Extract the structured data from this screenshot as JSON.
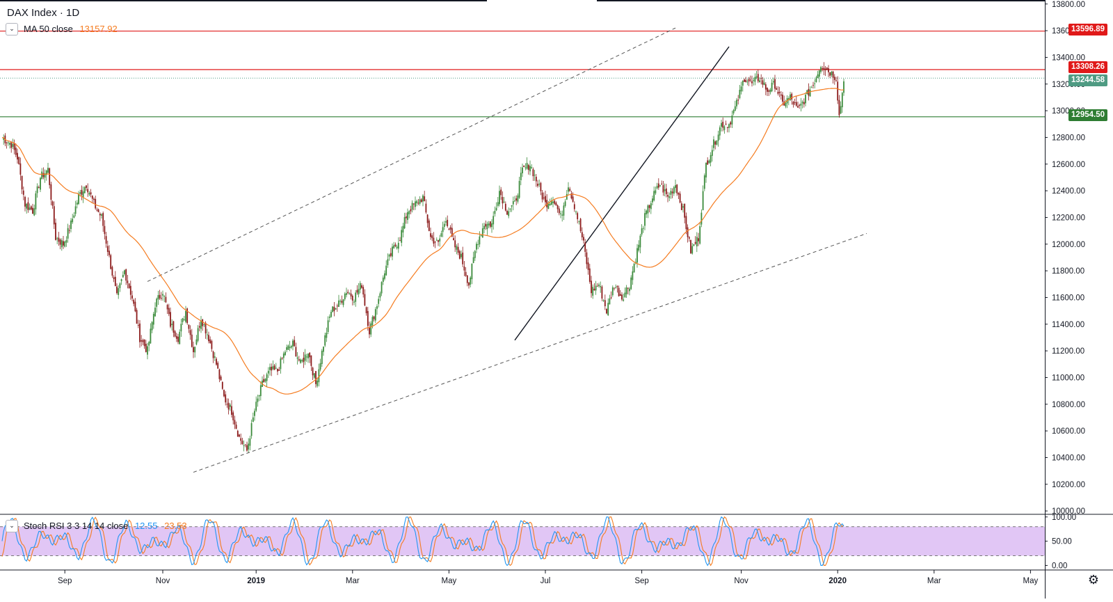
{
  "header": {
    "symbol_title": "DAX Index · 1D",
    "ma_label": "MA 50 close",
    "ma_value": "13157.92",
    "ma_color": "#f57c20"
  },
  "stoch": {
    "label": "Stoch RSI 3 3 14 14 close",
    "k_value": "12.55",
    "d_value": "23.53",
    "k_color": "#2196f3",
    "d_color": "#f57c20",
    "band_color": "#e1c6f5"
  },
  "price_tags": {
    "resistance_top": "13596.89",
    "resistance_mid": "13308.26",
    "last_price": "13244.58",
    "support": "12954.50"
  },
  "colors": {
    "up": "#26a69a",
    "up_fill": "#3a8a3a",
    "down": "#8b1a1a",
    "resistance": "#e01919",
    "support": "#2e7d32",
    "last": "#4f9b83"
  },
  "settings_icon": "gear-icon",
  "collapse_icon": "chevron-down-icon",
  "chart_data": {
    "type": "candlestick",
    "title": "DAX Index · 1D",
    "x_ticks": [
      "Sep",
      "Nov",
      "2019",
      "Mar",
      "May",
      "Jul",
      "Sep",
      "Nov",
      "2020",
      "Mar",
      "May"
    ],
    "y_ticks": [
      "13800.00",
      "13600.00",
      "13400.00",
      "13200.00",
      "13000.00",
      "12800.00",
      "12600.00",
      "12400.00",
      "12200.00",
      "12000.00",
      "11800.00",
      "11600.00",
      "11400.00",
      "11200.00",
      "11000.00",
      "10800.00",
      "10600.00",
      "10400.00",
      "10200.00",
      "10000.00"
    ],
    "ylim": [
      9980,
      13830
    ],
    "stoch_ticks": [
      "100.00",
      "50.00",
      "0.00"
    ],
    "stoch_ylim": [
      -8,
      104
    ],
    "stoch_bands": [
      20,
      80
    ],
    "horizontal_levels": [
      13596.89,
      13308.26,
      13244.58,
      12954.5
    ],
    "anchors": [
      [
        0,
        12800
      ],
      [
        6,
        12750
      ],
      [
        10,
        12650
      ],
      [
        15,
        12300
      ],
      [
        20,
        12250
      ],
      [
        25,
        12500
      ],
      [
        30,
        12560
      ],
      [
        35,
        12050
      ],
      [
        40,
        12000
      ],
      [
        45,
        12150
      ],
      [
        50,
        12360
      ],
      [
        55,
        12450
      ],
      [
        60,
        12300
      ],
      [
        65,
        12200
      ],
      [
        70,
        11900
      ],
      [
        75,
        11600
      ],
      [
        80,
        11800
      ],
      [
        85,
        11600
      ],
      [
        90,
        11300
      ],
      [
        95,
        11200
      ],
      [
        100,
        11550
      ],
      [
        105,
        11650
      ],
      [
        110,
        11400
      ],
      [
        115,
        11300
      ],
      [
        120,
        11500
      ],
      [
        125,
        11200
      ],
      [
        130,
        11450
      ],
      [
        135,
        11300
      ],
      [
        140,
        11100
      ],
      [
        145,
        10850
      ],
      [
        150,
        10750
      ],
      [
        155,
        10550
      ],
      [
        160,
        10450
      ],
      [
        165,
        10750
      ],
      [
        170,
        10950
      ],
      [
        175,
        11050
      ],
      [
        180,
        11050
      ],
      [
        185,
        11200
      ],
      [
        190,
        11250
      ],
      [
        195,
        11100
      ],
      [
        200,
        11200
      ],
      [
        205,
        10950
      ],
      [
        210,
        11250
      ],
      [
        215,
        11500
      ],
      [
        220,
        11550
      ],
      [
        225,
        11650
      ],
      [
        230,
        11600
      ],
      [
        235,
        11700
      ],
      [
        240,
        11350
      ],
      [
        245,
        11550
      ],
      [
        250,
        11800
      ],
      [
        255,
        11950
      ],
      [
        260,
        12050
      ],
      [
        265,
        12250
      ],
      [
        270,
        12300
      ],
      [
        275,
        12350
      ],
      [
        280,
        12050
      ],
      [
        285,
        12000
      ],
      [
        290,
        12200
      ],
      [
        295,
        12000
      ],
      [
        300,
        11900
      ],
      [
        305,
        11700
      ],
      [
        310,
        12000
      ],
      [
        315,
        12150
      ],
      [
        320,
        12150
      ],
      [
        325,
        12400
      ],
      [
        330,
        12250
      ],
      [
        335,
        12300
      ],
      [
        340,
        12550
      ],
      [
        345,
        12600
      ],
      [
        350,
        12450
      ],
      [
        355,
        12300
      ],
      [
        360,
        12350
      ],
      [
        365,
        12200
      ],
      [
        370,
        12450
      ],
      [
        375,
        12250
      ],
      [
        380,
        12000
      ],
      [
        385,
        11650
      ],
      [
        390,
        11700
      ],
      [
        395,
        11500
      ],
      [
        400,
        11700
      ],
      [
        405,
        11600
      ],
      [
        410,
        11700
      ],
      [
        415,
        11950
      ],
      [
        420,
        12200
      ],
      [
        425,
        12350
      ],
      [
        430,
        12450
      ],
      [
        435,
        12350
      ],
      [
        440,
        12450
      ],
      [
        445,
        12250
      ],
      [
        450,
        11950
      ],
      [
        455,
        12050
      ],
      [
        460,
        12600
      ],
      [
        465,
        12750
      ],
      [
        470,
        12900
      ],
      [
        475,
        12900
      ],
      [
        480,
        13050
      ],
      [
        485,
        13250
      ],
      [
        490,
        13200
      ],
      [
        495,
        13250
      ],
      [
        500,
        13150
      ],
      [
        505,
        13200
      ],
      [
        510,
        13050
      ],
      [
        515,
        13100
      ],
      [
        520,
        13000
      ],
      [
        525,
        13100
      ],
      [
        530,
        13200
      ],
      [
        535,
        13350
      ],
      [
        540,
        13300
      ],
      [
        545,
        13250
      ],
      [
        547,
        12960
      ],
      [
        550,
        13220
      ]
    ],
    "trendlines": {
      "upper_channel": [
        [
          95,
          11720
        ],
        [
          440,
          13620
        ]
      ],
      "lower_channel": [
        [
          125,
          10290
        ],
        [
          565,
          12080
        ]
      ],
      "rising_support": [
        [
          335,
          11280
        ],
        [
          475,
          13480
        ]
      ]
    },
    "ma_period": 50
  }
}
